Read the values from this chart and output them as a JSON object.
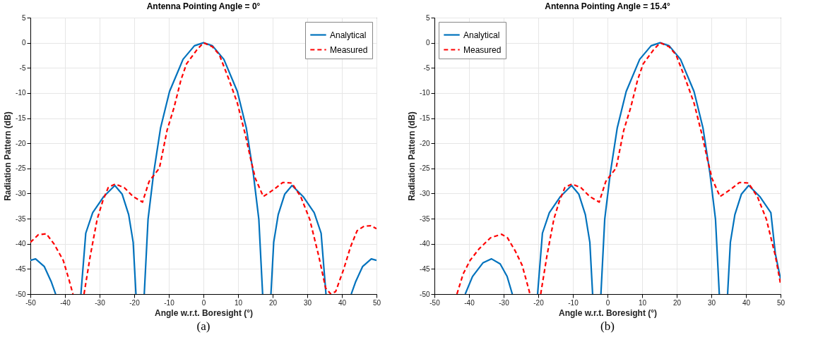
{
  "chart_data": [
    {
      "type": "line",
      "title": "Antenna Pointing Angle = 0°",
      "xlabel": "Angle w.r.t. Boresight (°)",
      "ylabel": "Radiation Pattern (dB)",
      "annotations": [
        "(a)"
      ],
      "xlim": [
        -50,
        50
      ],
      "ylim": [
        -50,
        5
      ],
      "xticks": [
        -50,
        -40,
        -30,
        -20,
        -10,
        0,
        10,
        20,
        30,
        40,
        50
      ],
      "yticks": [
        -50,
        -45,
        -40,
        -35,
        -30,
        -25,
        -20,
        -15,
        -10,
        -5,
        0,
        5
      ],
      "grid": true,
      "legend": "top right",
      "series": [
        {
          "name": "Analytical",
          "color": "#0072bd",
          "line_style": "solid",
          "x": [
            -50,
            -48.5,
            -46,
            -44,
            -42.7,
            -39,
            -35.4,
            -34,
            -32,
            -28.8,
            -25.6,
            -23.5,
            -21.6,
            -20.3,
            -19.5,
            -18.3,
            -17.1,
            -16,
            -14.4,
            -12.4,
            -9.8,
            -5.9,
            -2.6,
            0,
            2.6,
            5.9,
            9.8,
            12.4,
            14.4,
            16,
            17.1,
            18.3,
            19.5,
            20.3,
            21.6,
            23.5,
            25.6,
            28.8,
            32,
            34,
            35.4,
            39,
            42.7,
            44,
            46,
            48.5,
            50
          ],
          "values": [
            -43.3,
            -43,
            -44.5,
            -47.5,
            -50,
            null,
            -50,
            -37.9,
            -33.8,
            -30.6,
            -28.4,
            -30.1,
            -34.2,
            -39.7,
            -50,
            null,
            -50,
            -35.1,
            -26,
            -17,
            -9.7,
            -3.3,
            -0.6,
            0,
            -0.6,
            -3.3,
            -9.7,
            -17,
            -26,
            -35.1,
            -50,
            null,
            -50,
            -39.7,
            -34.2,
            -30.1,
            -28.4,
            -30.6,
            -33.8,
            -37.9,
            -50,
            null,
            -50,
            -47.5,
            -44.5,
            -43,
            -43.3
          ]
        },
        {
          "name": "Measured",
          "color": "#ff0000",
          "line_style": "dashed",
          "x": [
            -50,
            -47.7,
            -45.4,
            -43.1,
            -40.5,
            -38.9,
            -37.7,
            -36.1,
            -34.5,
            -32.7,
            -30.7,
            -29.1,
            -27.5,
            -25.5,
            -22.9,
            -20.3,
            -17.6,
            -15.7,
            -12.7,
            -10.5,
            -8.5,
            -6.5,
            -4.9,
            -2,
            0,
            2.6,
            4.6,
            7.2,
            9.8,
            12.1,
            13.7,
            15,
            17.3,
            20.3,
            22.9,
            25.5,
            28.1,
            30.7,
            33.3,
            35.3,
            36.8,
            38.2,
            40.5,
            42.5,
            44.4,
            46.4,
            48.4,
            50
          ],
          "values": [
            -39.7,
            -38.2,
            -38,
            -40.1,
            -43.3,
            -47,
            -50,
            null,
            -50,
            -42.4,
            -35.1,
            -31.5,
            -28.8,
            -28.1,
            -28.8,
            -30.6,
            -31.7,
            -27.6,
            -24.9,
            -17.4,
            -12.9,
            -7.4,
            -4.2,
            -1.5,
            0,
            -0.8,
            -2.4,
            -7,
            -12,
            -18.3,
            -23.3,
            -27,
            -30.6,
            -29.2,
            -27.8,
            -27.9,
            -30.6,
            -35.1,
            -42.4,
            -48.8,
            -50,
            -49.5,
            -45.1,
            -40.6,
            -37.4,
            -36.5,
            -36.4,
            -37
          ]
        }
      ]
    },
    {
      "type": "line",
      "title": "Antenna Pointing Angle = 15.4°",
      "xlabel": "Angle w.r.t. Boresight (°)",
      "ylabel": "Radiation Pattern (dB)",
      "annotations": [
        "(b)"
      ],
      "xlim": [
        -50,
        50
      ],
      "ylim": [
        -50,
        5
      ],
      "xticks": [
        -50,
        -40,
        -30,
        -20,
        -10,
        0,
        10,
        20,
        30,
        40,
        50
      ],
      "yticks": [
        -50,
        -45,
        -40,
        -35,
        -30,
        -25,
        -20,
        -15,
        -10,
        -5,
        0,
        5
      ],
      "grid": true,
      "legend": "top left",
      "series": [
        {
          "name": "Analytical",
          "color": "#0072bd",
          "line_style": "solid",
          "x": [
            -41.1,
            -39,
            -36,
            -33.5,
            -31,
            -29,
            -27.5,
            -23.9,
            -20.2,
            -18.8,
            -16.8,
            -13.6,
            -10.4,
            -8.3,
            -6.4,
            -5.1,
            -4.3,
            -3.1,
            -1.9,
            -0.8,
            0.8,
            2.8,
            5.4,
            9.3,
            12.6,
            15.2,
            17.8,
            21.1,
            25,
            27.6,
            29.6,
            31.2,
            32.3,
            33.5,
            34.7,
            35.5,
            36.8,
            38.7,
            40.8,
            44,
            47.2,
            48.5,
            50
          ],
          "values": [
            -50,
            -46.5,
            -43.8,
            -43,
            -44,
            -46.5,
            -50,
            null,
            -50,
            -37.9,
            -33.8,
            -30.6,
            -28.4,
            -30.1,
            -34.2,
            -39.7,
            -50,
            null,
            -50,
            -35.1,
            -26,
            -17,
            -9.7,
            -3.3,
            -0.6,
            0,
            -0.6,
            -3.3,
            -9.7,
            -17,
            -26,
            -35.1,
            -50,
            null,
            -50,
            -39.7,
            -34.2,
            -30.1,
            -28.4,
            -30.6,
            -33.8,
            -42,
            -47
          ]
        },
        {
          "name": "Measured",
          "color": "#ff0000",
          "line_style": "dashed",
          "x": [
            -43.5,
            -41.7,
            -39.7,
            -37.1,
            -33.8,
            -30.6,
            -28.9,
            -26.6,
            -24.7,
            -23.4,
            -22.4,
            -20.9,
            -19.3,
            -17.5,
            -15.5,
            -13.9,
            -12.3,
            -10.3,
            -7.7,
            -5.1,
            -2.4,
            -0.5,
            2.5,
            4.7,
            6.7,
            8.7,
            10.3,
            13.2,
            15.2,
            17.8,
            19.8,
            22.4,
            25,
            27.3,
            28.9,
            30.2,
            32.5,
            35.5,
            38.1,
            40.7,
            43.3,
            45.9,
            48.5,
            50
          ],
          "values": [
            -50,
            -46,
            -43.3,
            -41,
            -38.8,
            -38.1,
            -38.8,
            -41.5,
            -44.2,
            -47.4,
            -50,
            null,
            -50,
            -42.4,
            -35.1,
            -31.5,
            -28.8,
            -28.1,
            -28.8,
            -30.6,
            -31.7,
            -27.6,
            -24.9,
            -17.4,
            -12.9,
            -7.4,
            -4.2,
            -1.5,
            0,
            -0.8,
            -2.4,
            -7,
            -12,
            -18.3,
            -23.3,
            -27,
            -30.6,
            -29.2,
            -27.8,
            -27.9,
            -30.6,
            -35.1,
            -42.4,
            -48
          ]
        }
      ]
    }
  ]
}
